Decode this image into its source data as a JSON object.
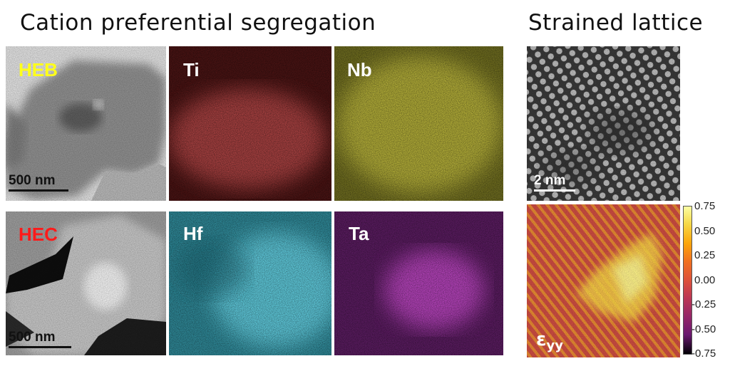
{
  "headings": {
    "left": "Cation preferential segregation",
    "right": "Strained lattice"
  },
  "panels": {
    "heb_label": "HEB",
    "hec_label": "HEC",
    "ti": "Ti",
    "nb": "Nb",
    "hf": "Hf",
    "ta": "Ta"
  },
  "scalebars": {
    "heb": "500 nm",
    "hec": "500 nm",
    "lattice": "2 nm"
  },
  "strain_map": {
    "symbol": "ε",
    "subscript": "yy",
    "colorbar_ticks": [
      "0.75",
      "0.50",
      "0.25",
      "0.00",
      "-0.25",
      "-0.50",
      "-0.75"
    ],
    "colormap": "inferno"
  },
  "colors": {
    "ti_map": "#b84848",
    "nb_map": "#b8b43a",
    "hf_map": "#55c8da",
    "ta_map": "#a23aa8",
    "heb_label": "#ffff1a",
    "hec_label": "#ff1a1a"
  }
}
